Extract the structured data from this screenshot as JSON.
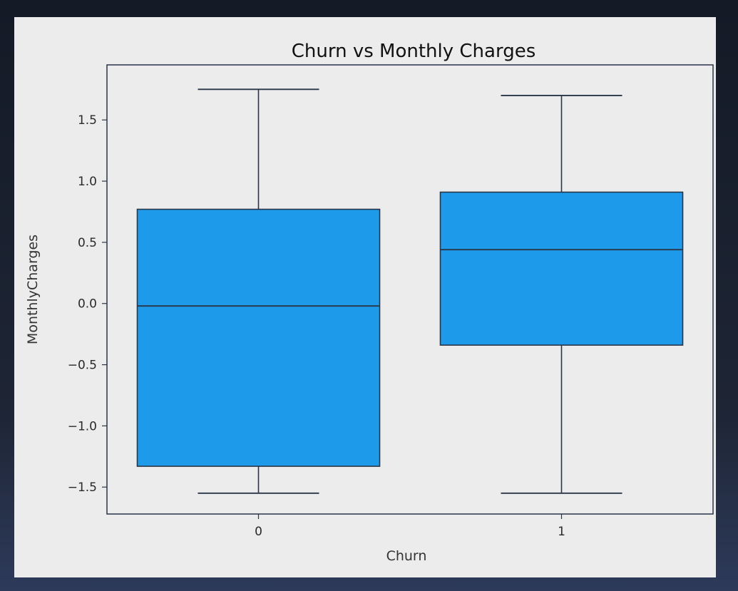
{
  "chart_data": {
    "type": "box",
    "title": "Churn vs Monthly Charges",
    "xlabel": "Churn",
    "ylabel": "MonthlyCharges",
    "categories": [
      "0",
      "1"
    ],
    "y_ticks": [
      -1.5,
      -1.0,
      -0.5,
      0.0,
      0.5,
      1.0,
      1.5
    ],
    "y_tick_labels": [
      "−1.5",
      "−1.0",
      "−0.5",
      "0.0",
      "0.5",
      "1.0",
      "1.5"
    ],
    "ylim": [
      -1.72,
      1.95
    ],
    "grid": false,
    "boxes": [
      {
        "category": "0",
        "whisker_low": -1.55,
        "q1": -1.33,
        "median": -0.02,
        "q3": 0.77,
        "whisker_high": 1.75
      },
      {
        "category": "1",
        "whisker_low": -1.55,
        "q1": -0.34,
        "median": 0.44,
        "q3": 0.91,
        "whisker_high": 1.7
      }
    ],
    "colors": {
      "box_fill": "#1d9bea",
      "box_edge": "#2a3548",
      "line": "#2a3548"
    }
  }
}
